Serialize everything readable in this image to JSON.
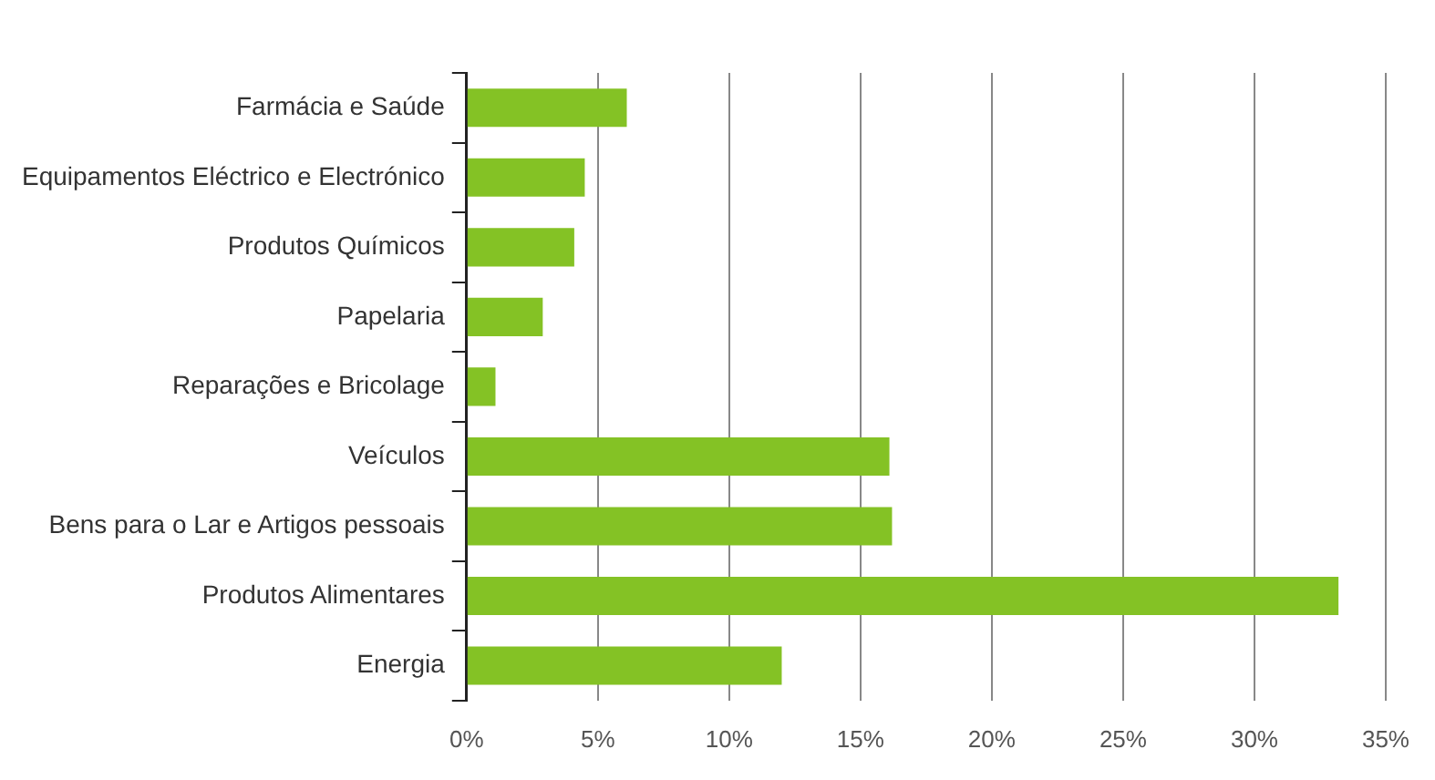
{
  "chart_data": {
    "type": "bar",
    "orientation": "horizontal",
    "categories": [
      "Farmácia e Saúde",
      "Equipamentos Eléctrico e Electrónico",
      "Produtos Químicos",
      "Papelaria",
      "Reparações e Bricolage",
      "Veículos",
      "Bens para o Lar e Artigos pessoais",
      "Produtos Alimentares",
      "Energia"
    ],
    "values": [
      6.1,
      4.5,
      4.1,
      2.9,
      1.1,
      16.1,
      16.2,
      33.2,
      12.0
    ],
    "color": "#84c225",
    "xlim": [
      0,
      35
    ],
    "xticks": [
      {
        "value": 0,
        "label": "0%"
      },
      {
        "value": 5,
        "label": "5%"
      },
      {
        "value": 10,
        "label": "10%"
      },
      {
        "value": 15,
        "label": "15%"
      },
      {
        "value": 20,
        "label": "20%"
      },
      {
        "value": 25,
        "label": "25%"
      },
      {
        "value": 30,
        "label": "30%"
      },
      {
        "value": 35,
        "label": "35%"
      }
    ],
    "grid": "x",
    "legend": false
  }
}
